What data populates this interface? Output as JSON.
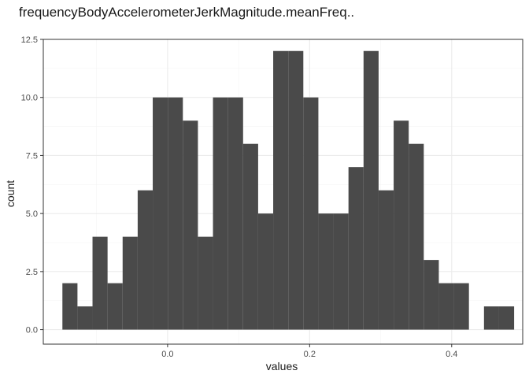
{
  "chart_data": {
    "type": "bar",
    "title": "frequencyBodyAccelerometerJerkMagnitude.meanFreq..",
    "xlabel": "values",
    "ylabel": "count",
    "xlim": [
      -0.175,
      0.5
    ],
    "ylim": [
      -0.625,
      12.5
    ],
    "x_ticks": [
      0.0,
      0.2,
      0.4
    ],
    "x_tick_labels": [
      "0.0",
      "0.2",
      "0.4"
    ],
    "y_ticks": [
      0,
      2.5,
      5,
      7.5,
      10,
      12.5
    ],
    "y_tick_labels": [
      "0.0",
      "2.5",
      "5.0",
      "7.5",
      "10.0",
      "12.5"
    ],
    "grid": true,
    "bin_width": 0.0212,
    "bins": [
      {
        "x": -0.1375,
        "count": 2
      },
      {
        "x": -0.1163,
        "count": 1
      },
      {
        "x": -0.0951,
        "count": 4
      },
      {
        "x": -0.0739,
        "count": 2
      },
      {
        "x": -0.0527,
        "count": 4
      },
      {
        "x": -0.0315,
        "count": 6
      },
      {
        "x": -0.0103,
        "count": 10
      },
      {
        "x": 0.0109,
        "count": 10
      },
      {
        "x": 0.0321,
        "count": 9
      },
      {
        "x": 0.0533,
        "count": 4
      },
      {
        "x": 0.0745,
        "count": 10
      },
      {
        "x": 0.0957,
        "count": 10
      },
      {
        "x": 0.1169,
        "count": 8
      },
      {
        "x": 0.1381,
        "count": 5
      },
      {
        "x": 0.1593,
        "count": 12
      },
      {
        "x": 0.1805,
        "count": 12
      },
      {
        "x": 0.2017,
        "count": 10
      },
      {
        "x": 0.2229,
        "count": 5
      },
      {
        "x": 0.2441,
        "count": 5
      },
      {
        "x": 0.2653,
        "count": 7
      },
      {
        "x": 0.2865,
        "count": 12
      },
      {
        "x": 0.3077,
        "count": 6
      },
      {
        "x": 0.3289,
        "count": 9
      },
      {
        "x": 0.3501,
        "count": 8
      },
      {
        "x": 0.3713,
        "count": 3
      },
      {
        "x": 0.3925,
        "count": 2
      },
      {
        "x": 0.4137,
        "count": 2
      },
      {
        "x": 0.4349,
        "count": 0
      },
      {
        "x": 0.4561,
        "count": 1
      },
      {
        "x": 0.4773,
        "count": 1
      }
    ],
    "bar_color": "#4a4a4a",
    "grid_major_color": "#ebebeb",
    "grid_minor_color": "#f5f5f5",
    "panel_border_color": "#333333"
  }
}
